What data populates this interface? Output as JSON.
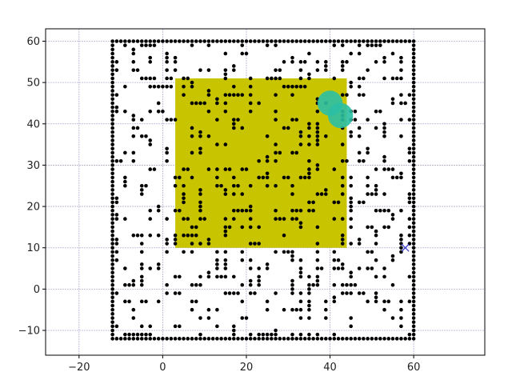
{
  "chart_data": {
    "type": "scatter",
    "title": "",
    "xlabel": "",
    "ylabel": "",
    "xlim": [
      -28,
      77
    ],
    "ylim": [
      -16,
      63
    ],
    "grid": true,
    "x_ticks": [
      -20,
      0,
      20,
      40,
      60
    ],
    "y_ticks": [
      -10,
      0,
      10,
      20,
      30,
      40,
      50,
      60
    ],
    "x_tick_labels": [
      "−20",
      "0",
      "20",
      "40",
      "60"
    ],
    "y_tick_labels": [
      "−10",
      "0",
      "10",
      "20",
      "30",
      "40",
      "50",
      "60"
    ],
    "boundary": {
      "xmin": -12,
      "xmax": 60,
      "ymin": -12,
      "ymax": 60,
      "step": 1
    },
    "obstacle_field": {
      "xmin": -11,
      "xmax": 59,
      "ymin": -11,
      "ymax": 59,
      "step": 2,
      "density": 0.36
    },
    "highlight_region": {
      "x": [
        3,
        44
      ],
      "y": [
        10,
        51
      ],
      "color": "#c8c400"
    },
    "start_points": [
      {
        "x": 40,
        "y": 45,
        "r": 3,
        "color": "#2bbfa4"
      },
      {
        "x": 42.5,
        "y": 42,
        "r": 3,
        "color": "#2bbfa4"
      }
    ],
    "goal": {
      "x": 58,
      "y": 10,
      "marker": "x",
      "color": "#3333cc"
    },
    "colors": {
      "points": "#000000",
      "grid": "#b0b0d0",
      "axes": "#000000"
    }
  }
}
